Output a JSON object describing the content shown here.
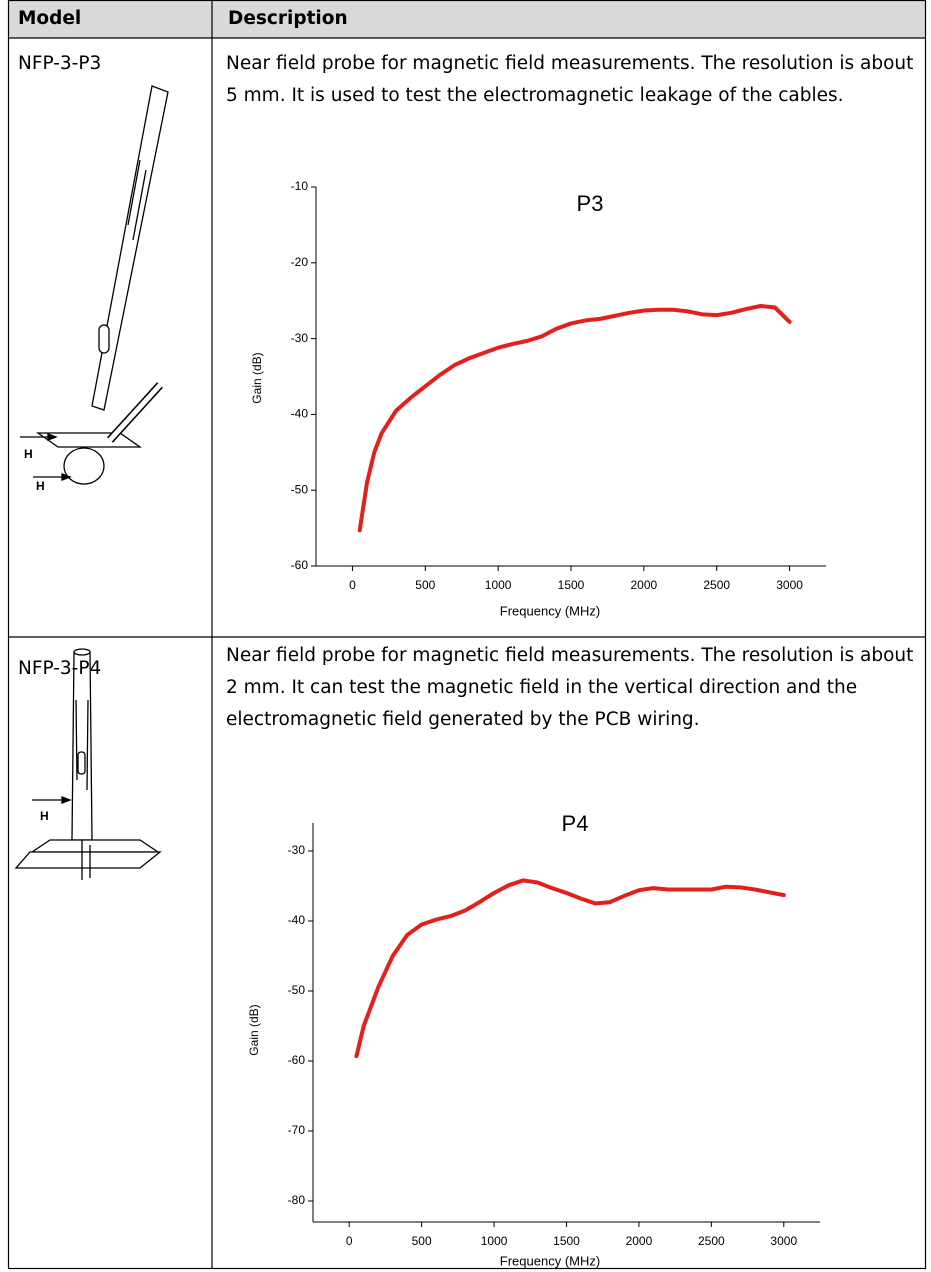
{
  "table": {
    "headers": [
      "Model",
      "Description"
    ],
    "rows": [
      {
        "model": "NFP-3-P3",
        "description": "Near field probe for magnetic field measurements. The resolution is about 5 mm. It is used to test the electromagnetic leakage of the cables.",
        "probe_labels": [
          "H",
          "H"
        ],
        "chart_data": {
          "type": "line",
          "title": "P3",
          "x_label": "Frequency (MHz)",
          "y_label": "Gain (dB)",
          "x": [
            50,
            100,
            150,
            200,
            300,
            400,
            500,
            600,
            700,
            800,
            900,
            1000,
            1100,
            1200,
            1300,
            1400,
            1500,
            1600,
            1700,
            1800,
            1900,
            2000,
            2100,
            2200,
            2300,
            2400,
            2500,
            2600,
            2700,
            2800,
            2900,
            3000
          ],
          "series": [
            {
              "color": "#e3201b",
              "values": [
                -55.3,
                -49,
                -45,
                -42.5,
                -39.5,
                -37.8,
                -36.3,
                -34.8,
                -33.5,
                -32.6,
                -31.9,
                -31.2,
                -30.7,
                -30.3,
                -29.7,
                -28.7,
                -28.0,
                -27.6,
                -27.4,
                -27.0,
                -26.6,
                -26.3,
                -26.2,
                -26.2,
                -26.4,
                -26.8,
                -26.9,
                -26.6,
                -26.1,
                -25.7,
                -25.9,
                -27.8
              ]
            }
          ],
          "xlim": [
            -250,
            3250
          ],
          "xticks": [
            0,
            500,
            1000,
            1500,
            2000,
            2500,
            3000
          ],
          "ylim": [
            -60,
            -10
          ],
          "yticks": [
            -60,
            -50,
            -40,
            -30,
            -20,
            -10
          ]
        }
      },
      {
        "model": "NFP-3-P4",
        "description": "Near field probe for magnetic field measurements. The resolution is about 2 mm. It can test the magnetic field in the vertical direction and the electromagnetic field generated by the PCB wiring.",
        "probe_labels": [
          "H"
        ],
        "chart_data": {
          "type": "line",
          "title": "P4",
          "x_label": "Frequency (MHz)",
          "y_label": "Gain (dB)",
          "x": [
            50,
            100,
            200,
            300,
            400,
            500,
            600,
            700,
            800,
            900,
            1000,
            1100,
            1200,
            1300,
            1400,
            1500,
            1600,
            1700,
            1800,
            1900,
            2000,
            2100,
            2200,
            2300,
            2400,
            2500,
            2600,
            2700,
            2800,
            2900,
            3000
          ],
          "series": [
            {
              "color": "#e3201b",
              "values": [
                -59.3,
                -55,
                -49.5,
                -45,
                -42,
                -40.5,
                -39.8,
                -39.3,
                -38.5,
                -37.3,
                -36,
                -34.9,
                -34.2,
                -34.5,
                -35.3,
                -36,
                -36.8,
                -37.5,
                -37.3,
                -36.4,
                -35.6,
                -35.3,
                -35.5,
                -35.5,
                -35.5,
                -35.5,
                -35.1,
                -35.2,
                -35.5,
                -35.9,
                -36.3
              ]
            }
          ],
          "xlim": [
            -250,
            3250
          ],
          "xticks": [
            0,
            500,
            1000,
            1500,
            2000,
            2500,
            3000
          ],
          "ylim": [
            -83,
            -26
          ],
          "yticks": [
            -80,
            -70,
            -60,
            -50,
            -40,
            -30
          ]
        }
      }
    ]
  }
}
